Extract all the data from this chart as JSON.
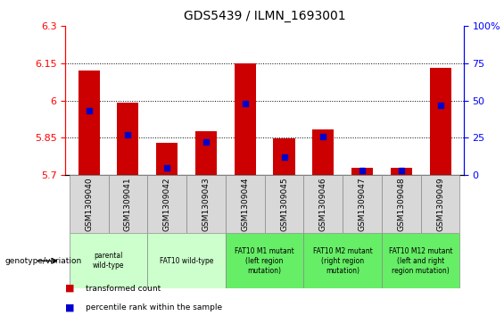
{
  "title": "GDS5439 / ILMN_1693001",
  "samples": [
    "GSM1309040",
    "GSM1309041",
    "GSM1309042",
    "GSM1309043",
    "GSM1309044",
    "GSM1309045",
    "GSM1309046",
    "GSM1309047",
    "GSM1309048",
    "GSM1309049"
  ],
  "transformed_counts": [
    6.12,
    5.99,
    5.83,
    5.875,
    6.148,
    5.848,
    5.885,
    5.73,
    5.73,
    6.13
  ],
  "percentile_ranks": [
    43,
    27,
    5,
    22,
    48,
    12,
    26,
    3,
    3,
    47
  ],
  "ymin": 5.7,
  "ymax": 6.3,
  "yticks": [
    5.7,
    5.85,
    6.0,
    6.15,
    6.3
  ],
  "ytick_labels": [
    "5.7",
    "5.85",
    "6",
    "6.15",
    "6.3"
  ],
  "y2min": 0,
  "y2max": 100,
  "y2ticks": [
    0,
    25,
    50,
    75,
    100
  ],
  "y2tick_labels": [
    "0",
    "25",
    "50",
    "75",
    "100%"
  ],
  "bar_color": "#CC0000",
  "percentile_color": "#0000CC",
  "bar_width": 0.55,
  "genotype_groups": [
    {
      "label": "parental\nwild-type",
      "start": 0,
      "end": 1,
      "color": "#ccffcc"
    },
    {
      "label": "FAT10 wild-type",
      "start": 2,
      "end": 3,
      "color": "#ccffcc"
    },
    {
      "label": "FAT10 M1 mutant\n(left region\nmutation)",
      "start": 4,
      "end": 5,
      "color": "#66ee66"
    },
    {
      "label": "FAT10 M2 mutant\n(right region\nmutation)",
      "start": 6,
      "end": 7,
      "color": "#66ee66"
    },
    {
      "label": "FAT10 M12 mutant\n(left and right\nregion mutation)",
      "start": 8,
      "end": 9,
      "color": "#66ee66"
    }
  ],
  "legend_label_red": "transformed count",
  "legend_label_blue": "percentile rank within the sample",
  "genotype_label": "genotype/variation"
}
